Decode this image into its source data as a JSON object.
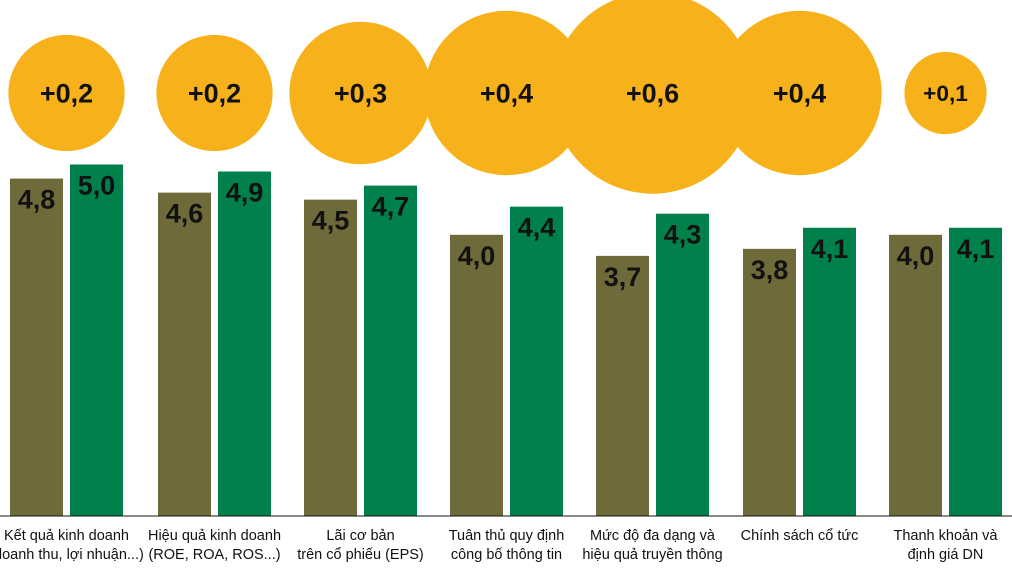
{
  "chart_data": {
    "type": "bar",
    "categories": [
      [
        "Kết quả kinh doanh",
        "(doanh thu, lợi nhuận...)"
      ],
      [
        "Hiệu quả kinh doanh",
        "(ROE, ROA, ROS...)"
      ],
      [
        "Lãi cơ bản",
        "trên cổ phiếu (EPS)"
      ],
      [
        "Tuân thủ quy định",
        "công bố thông tin"
      ],
      [
        "Mức độ đa dạng và",
        "hiệu quả truyền thông"
      ],
      [
        "Chính sách cổ tức"
      ],
      [
        "Thanh khoản và",
        "định giá DN"
      ]
    ],
    "series": [
      {
        "name": "series-1",
        "color": "#6f6a3a",
        "values": [
          4.8,
          4.6,
          4.5,
          4.0,
          3.7,
          3.8,
          4.0
        ],
        "labels": [
          "4,8",
          "4,6",
          "4,5",
          "4,0",
          "3,7",
          "3,8",
          "4,0"
        ]
      },
      {
        "name": "series-2",
        "color": "#00804a",
        "values": [
          5.0,
          4.9,
          4.7,
          4.4,
          4.3,
          4.1,
          4.1
        ],
        "labels": [
          "5,0",
          "4,9",
          "4,7",
          "4,4",
          "4,3",
          "4,1",
          "4,1"
        ]
      }
    ],
    "differences": {
      "color": "#f7b21b",
      "values": [
        0.2,
        0.2,
        0.3,
        0.4,
        0.6,
        0.4,
        0.1
      ],
      "labels": [
        "+0,2",
        "+0,2",
        "+0,3",
        "+0,4",
        "+0,6",
        "+0,4",
        "+0,1"
      ]
    },
    "title": "",
    "xlabel": "",
    "ylabel": ""
  }
}
